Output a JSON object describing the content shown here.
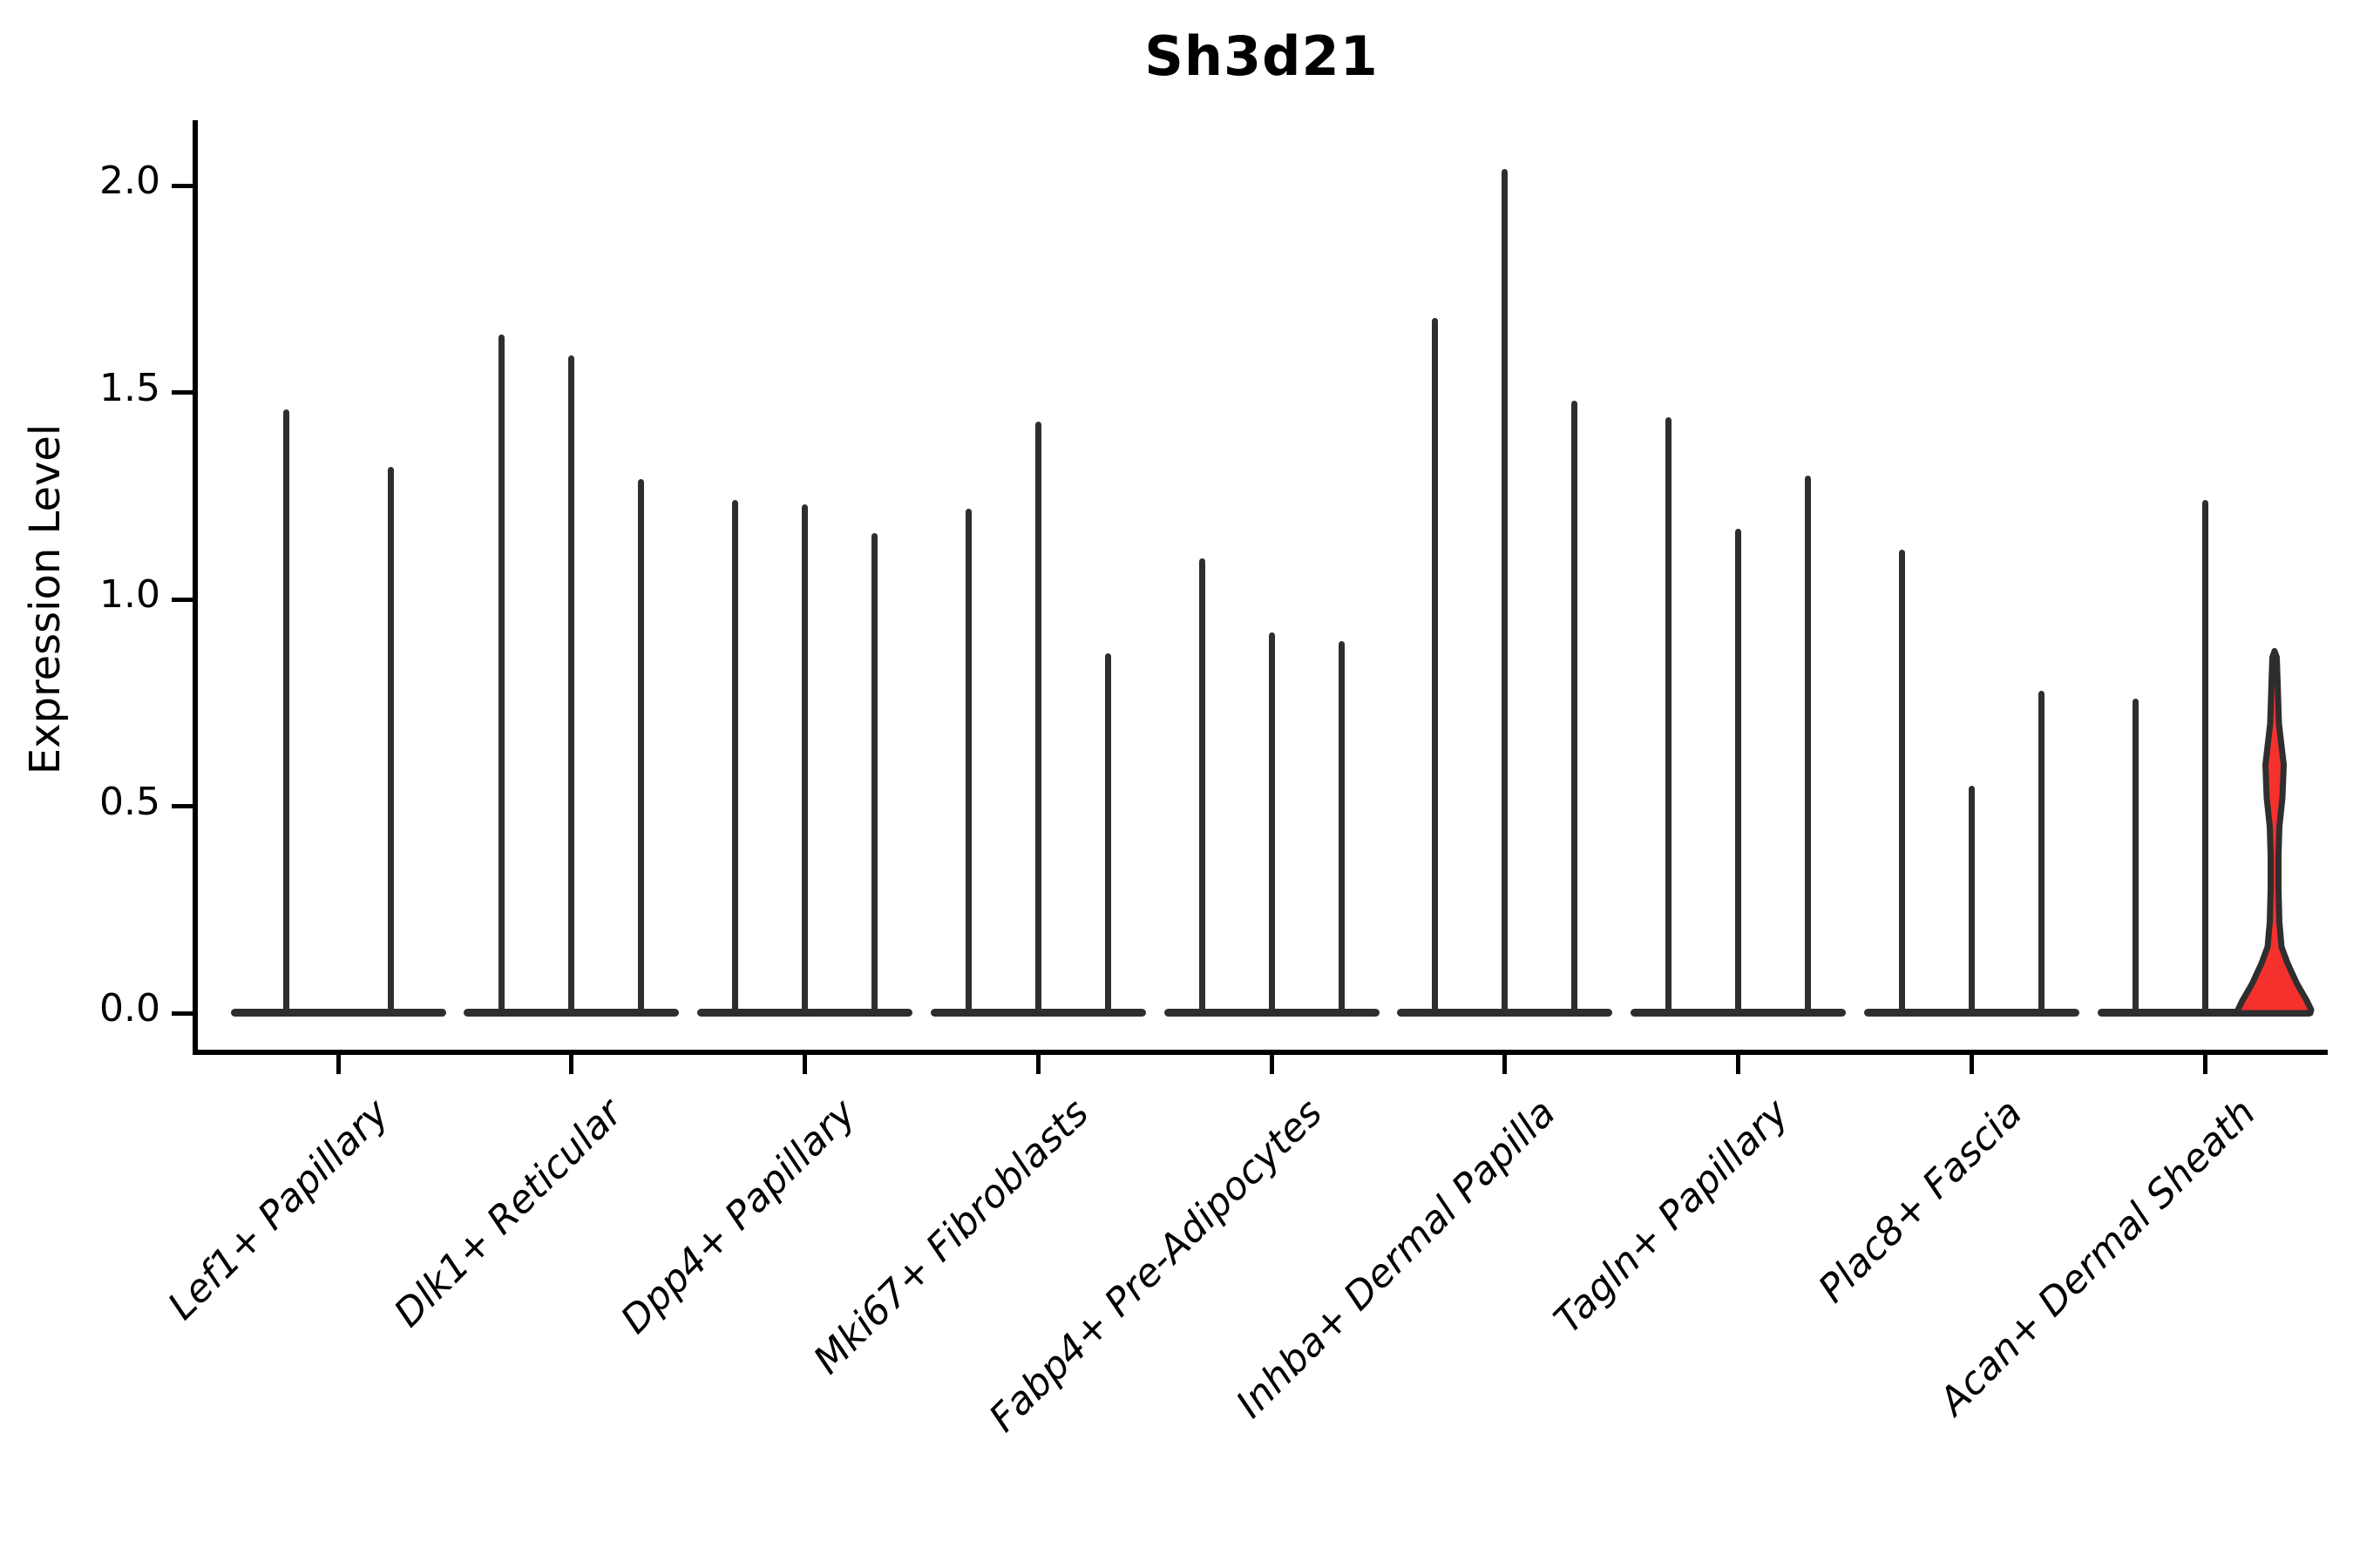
{
  "chart_data": {
    "type": "violin",
    "title": "Sh3d21",
    "ylabel": "Expression Level",
    "xlabel": "",
    "ylim": [
      0.0,
      2.05
    ],
    "yticks": [
      0.0,
      0.5,
      1.0,
      1.5,
      2.0
    ],
    "ytick_labels": [
      "0.0",
      "0.5",
      "1.0",
      "1.5",
      "2.0"
    ],
    "grid": "off",
    "legend": "none",
    "violin_color": "#2e2e2e",
    "highlight_color": "#f5312d",
    "background_color": "#ffffff",
    "categories": [
      "Lef1+ Papillary",
      "Dlk1+ Reticular",
      "Dpp4+ Papillary",
      "Mki67+ Fibroblasts",
      "Fabp4+ Pre-Adipocytes",
      "Inhba+ Dermal Papilla",
      "Tagln+ Papillary",
      "Plac8+ Fascia",
      "Acan+ Dermal Sheath"
    ],
    "groups": [
      {
        "category": "Lef1+ Papillary",
        "violins": [
          {
            "max": 1.46
          },
          {
            "max": 1.32
          }
        ]
      },
      {
        "category": "Dlk1+ Reticular",
        "violins": [
          {
            "max": 1.64
          },
          {
            "max": 1.59
          },
          {
            "max": 1.29
          }
        ]
      },
      {
        "category": "Dpp4+ Papillary",
        "violins": [
          {
            "max": 1.24
          },
          {
            "max": 1.23
          },
          {
            "max": 1.16
          }
        ]
      },
      {
        "category": "Mki67+ Fibroblasts",
        "violins": [
          {
            "max": 1.22
          },
          {
            "max": 1.43
          },
          {
            "max": 0.87
          }
        ]
      },
      {
        "category": "Fabp4+ Pre-Adipocytes",
        "violins": [
          {
            "max": 1.1
          },
          {
            "max": 0.92
          },
          {
            "max": 0.9
          }
        ]
      },
      {
        "category": "Inhba+ Dermal Papilla",
        "violins": [
          {
            "max": 1.68
          },
          {
            "max": 2.04
          },
          {
            "max": 1.48
          }
        ]
      },
      {
        "category": "Tagln+ Papillary",
        "violins": [
          {
            "max": 1.44
          },
          {
            "max": 1.17
          },
          {
            "max": 1.3
          }
        ]
      },
      {
        "category": "Plac8+ Fascia",
        "violins": [
          {
            "max": 1.12
          },
          {
            "max": 0.55
          },
          {
            "max": 0.78
          }
        ]
      },
      {
        "category": "Acan+ Dermal Sheath",
        "violins": [
          {
            "max": 0.76
          },
          {
            "max": 1.24
          },
          {
            "max": 0.87,
            "highlight": true,
            "body_profile": [
              [
                0.875,
                0
              ],
              [
                0.86,
                2.5
              ],
              [
                0.8,
                3.5
              ],
              [
                0.7,
                5
              ],
              [
                0.6,
                10.5
              ],
              [
                0.52,
                9
              ],
              [
                0.45,
                5.5
              ],
              [
                0.38,
                4.5
              ],
              [
                0.3,
                4.5
              ],
              [
                0.22,
                5.5
              ],
              [
                0.16,
                8
              ],
              [
                0.12,
                15
              ],
              [
                0.07,
                26
              ],
              [
                0.03,
                37
              ],
              [
                0.008,
                42
              ],
              [
                0.0,
                41
              ]
            ]
          }
        ]
      }
    ]
  }
}
